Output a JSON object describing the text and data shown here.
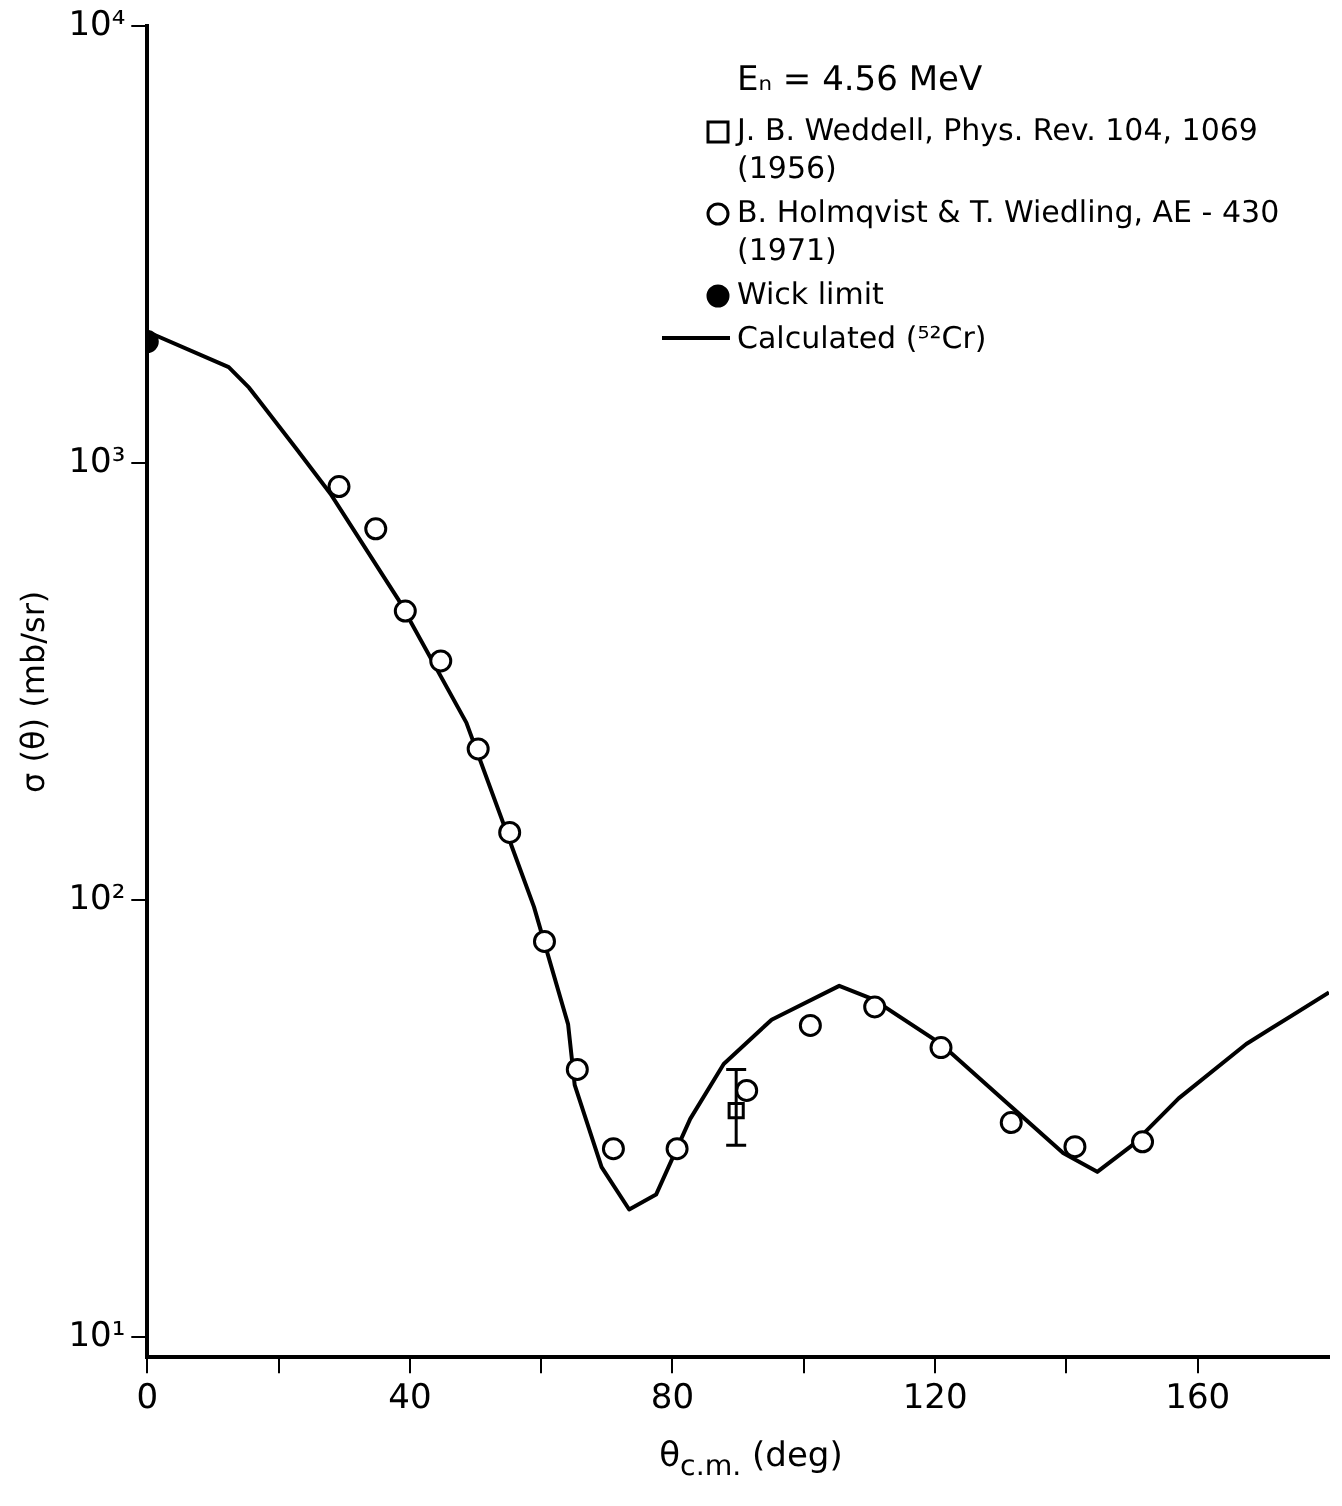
{
  "chart_data": {
    "type": "scatter",
    "xlabel": "θ$_{c.m.}$ (deg)",
    "ylabel": "σ (θ) (mb/sr)",
    "legend_title": "Eₙ = 4.56 MeV",
    "log": "y",
    "grid": false,
    "legend": "top right",
    "xlim": [
      0,
      180
    ],
    "xticks": [
      0,
      {
        "value": 20,
        "label": null
      },
      40,
      {
        "value": 60,
        "label": null
      },
      80,
      {
        "value": 100,
        "label": null
      },
      120,
      {
        "value": 140,
        "label": null
      },
      160
    ],
    "ylim": [
      9,
      10000
    ],
    "yticks": [
      {
        "value": 10,
        "label": "10¹"
      },
      {
        "value": 100,
        "label": "10²"
      },
      {
        "value": 1000,
        "label": "10³"
      },
      {
        "value": 10000,
        "label": "10⁴"
      }
    ],
    "series": [
      {
        "name": "J. B. Weddell, Phys. Rev. 104, 1069 (1956)",
        "type": "scatter",
        "marker": "square",
        "color": "#000000",
        "x": [
          89.7
        ],
        "values": [
          33
        ],
        "errors": [
          [
            27.5,
            41
          ]
        ]
      },
      {
        "name": "B. Holmqvist & T. Wiedling, AE - 430 (1971)",
        "type": "scatter",
        "marker": "circle",
        "color": "#000000",
        "x": [
          29.2,
          34.8,
          39.3,
          44.7,
          50.4,
          55.2,
          60.5,
          65.5,
          71,
          80.7,
          91.3,
          101,
          110.8,
          120.9,
          131.6,
          141.3,
          151.6
        ],
        "values": [
          885,
          708,
          459,
          353,
          222,
          143,
          80.5,
          41,
          27,
          27,
          36.7,
          51.7,
          57,
          46,
          31,
          27.3,
          28
        ]
      },
      {
        "name": "Wick limit",
        "type": "scatter",
        "marker": "circle",
        "color": "#000000",
        "x": [
          0
        ],
        "values": [
          1900
        ]
      },
      {
        "name": "Calculated (⁵²Cr)",
        "type": "line",
        "marker": "none",
        "line_style": "solid",
        "color": "#000000",
        "x": [
          0,
          12.4,
          15.5,
          22.7,
          27.9,
          38.2,
          48.6,
          58.9,
          64.1,
          65.1,
          69.2,
          73.4,
          77.5,
          82.7,
          87.8,
          95.1,
          105.4,
          110.6,
          120.9,
          131.3,
          139.5,
          144.7,
          149.9,
          157.1,
          167.4,
          180
        ],
        "values": [
          2000,
          1660,
          1490,
          1080,
          852,
          489,
          255,
          96.6,
          52,
          37.8,
          24.5,
          19.6,
          21.2,
          31.6,
          42.2,
          53.3,
          63.7,
          59.3,
          46.9,
          34,
          26.4,
          23.9,
          27.4,
          35.2,
          46.9,
          61.5
        ]
      }
    ]
  }
}
